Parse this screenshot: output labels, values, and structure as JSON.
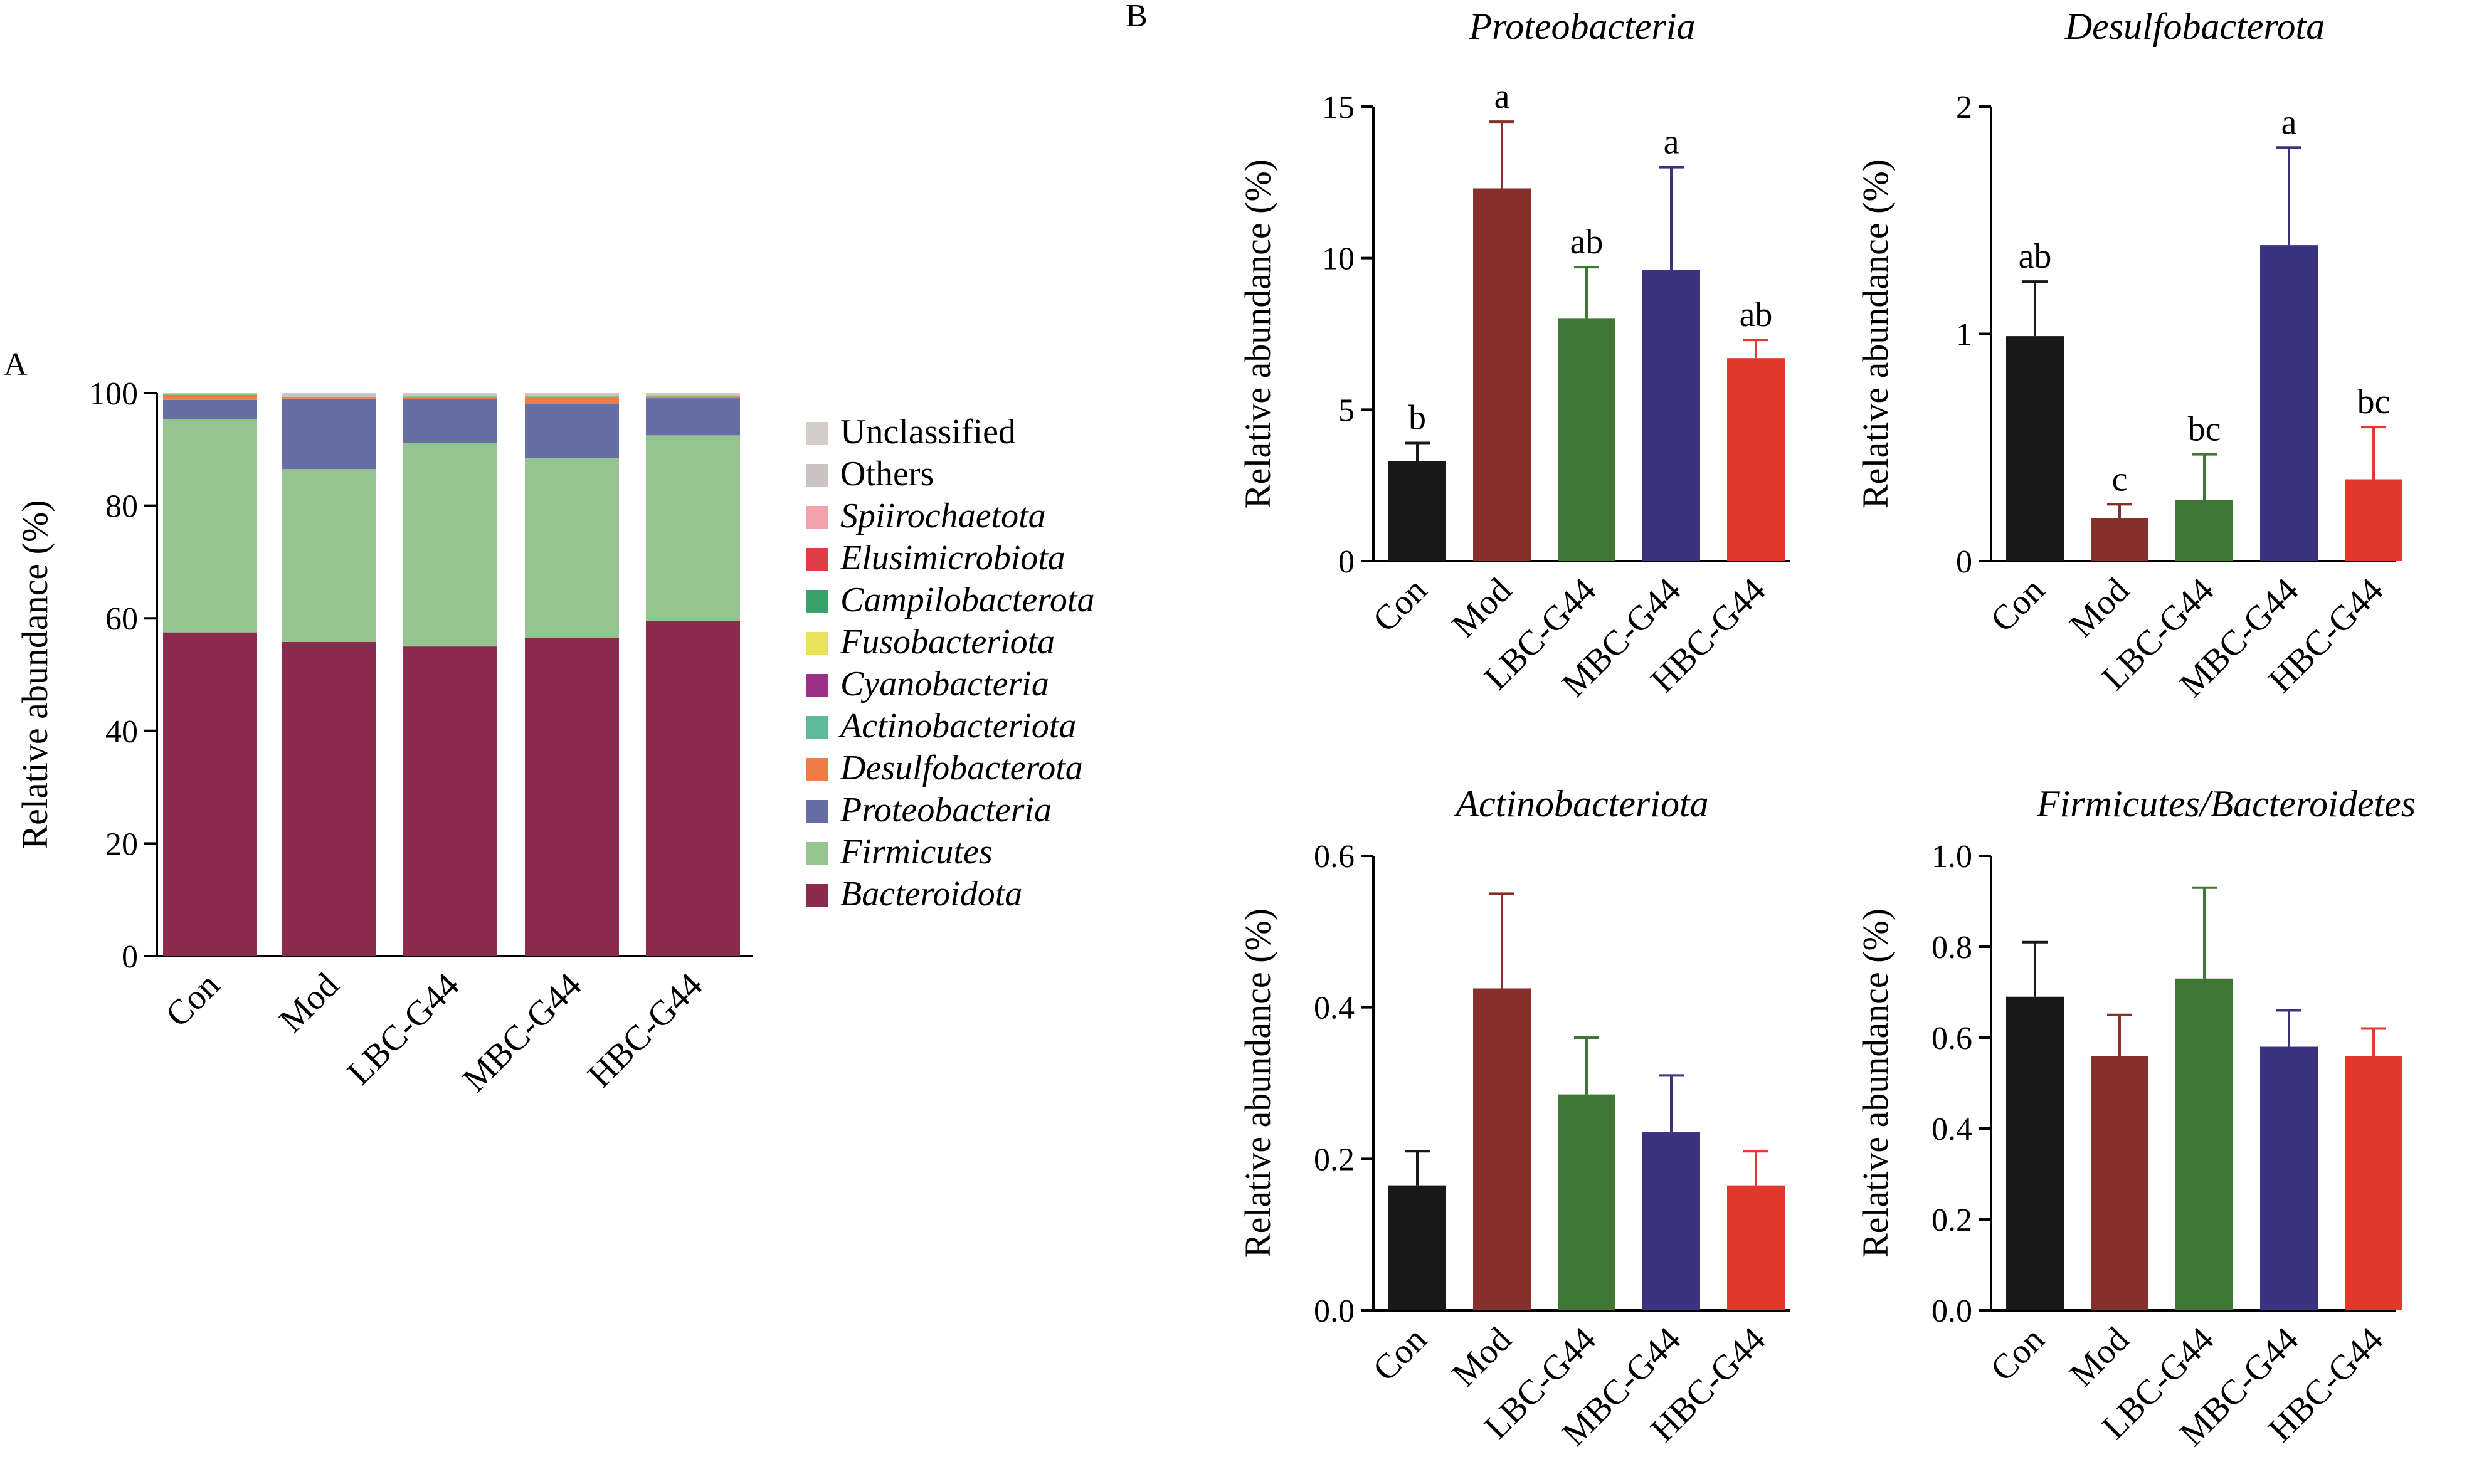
{
  "panel_labels": {
    "a": "A",
    "b": "B"
  },
  "chart_data": [
    {
      "id": "A",
      "type": "bar",
      "stacked": true,
      "title": "",
      "xlabel": "",
      "ylabel": "Relative abundance (%)",
      "ylim": [
        0,
        100
      ],
      "yticks": [
        0,
        20,
        40,
        60,
        80,
        100
      ],
      "categories": [
        "Con",
        "Mod",
        "LBC-G44",
        "MBC-G44",
        "HBC-G44"
      ],
      "legend_position": "right",
      "series": [
        {
          "name": "Bacteroidota",
          "italic": true,
          "color": "#8b2a4d",
          "values": [
            57.5,
            55.8,
            55.0,
            56.5,
            59.5
          ]
        },
        {
          "name": "Firmicutes",
          "italic": true,
          "color": "#96c48f",
          "values": [
            37.9,
            30.7,
            36.2,
            32.0,
            33.0
          ]
        },
        {
          "name": "Proteobacteria",
          "italic": true,
          "color": "#676ea4",
          "values": [
            3.4,
            12.4,
            7.8,
            9.5,
            6.6
          ]
        },
        {
          "name": "Desulfobacterota",
          "italic": true,
          "color": "#ee7d45",
          "values": [
            0.9,
            0.2,
            0.3,
            1.3,
            0.3
          ]
        },
        {
          "name": "Actinobacteriota",
          "italic": true,
          "color": "#5dbb9c",
          "values": [
            0.1,
            0.2,
            0.1,
            0.1,
            0.1
          ]
        },
        {
          "name": "Cyanobacteria",
          "italic": true,
          "color": "#9c2f86",
          "values": [
            0.0,
            0.0,
            0.0,
            0.0,
            0.0
          ]
        },
        {
          "name": "Fusobacteriota",
          "italic": true,
          "color": "#e9e35b",
          "values": [
            0.0,
            0.0,
            0.0,
            0.0,
            0.0
          ]
        },
        {
          "name": "Campilobacterota",
          "italic": true,
          "color": "#3aa36b",
          "values": [
            0.0,
            0.0,
            0.0,
            0.0,
            0.0
          ]
        },
        {
          "name": "Elusimicrobiota",
          "italic": true,
          "color": "#e03c46",
          "values": [
            0.0,
            0.0,
            0.0,
            0.0,
            0.0
          ]
        },
        {
          "name": "Spiirochaetota",
          "italic": true,
          "color": "#f2a2aa",
          "values": [
            0.0,
            0.0,
            0.0,
            0.0,
            0.0
          ]
        },
        {
          "name": "Others",
          "italic": false,
          "color": "#c9c4c1",
          "values": [
            0.2,
            0.5,
            0.4,
            0.4,
            0.3
          ]
        },
        {
          "name": "Unclassified",
          "italic": false,
          "color": "#d3cdc8",
          "values": [
            0.0,
            0.2,
            0.2,
            0.2,
            0.2
          ]
        }
      ]
    },
    {
      "id": "B1",
      "type": "bar",
      "title": "Proteobacteria",
      "xlabel": "",
      "ylabel": "Relative abundance (%)",
      "ylim": [
        0,
        15
      ],
      "yticks": [
        0,
        5,
        10,
        15
      ],
      "categories": [
        "Con",
        "Mod",
        "LBC-G44",
        "MBC-G44",
        "HBC-G44"
      ],
      "values": [
        3.3,
        12.3,
        8.0,
        9.6,
        6.7
      ],
      "errors": [
        0.6,
        2.2,
        1.7,
        3.4,
        0.6
      ],
      "significance": [
        "b",
        "a",
        "ab",
        "a",
        "ab"
      ],
      "colors": [
        "#181818",
        "#86302b",
        "#407636",
        "#3a3480",
        "#e3392d"
      ]
    },
    {
      "id": "B2",
      "type": "bar",
      "title": "Desulfobacterota",
      "xlabel": "",
      "ylabel": "Relative abundance (%)",
      "ylim": [
        0,
        2
      ],
      "yticks": [
        0,
        1,
        2
      ],
      "categories": [
        "Con",
        "Mod",
        "LBC-G44",
        "MBC-G44",
        "HBC-G44"
      ],
      "values": [
        0.99,
        0.19,
        0.27,
        1.39,
        0.36
      ],
      "errors": [
        0.24,
        0.06,
        0.2,
        0.43,
        0.23
      ],
      "significance": [
        "ab",
        "c",
        "bc",
        "a",
        "bc"
      ],
      "colors": [
        "#181818",
        "#86302b",
        "#407636",
        "#3a3480",
        "#e3392d"
      ]
    },
    {
      "id": "B3",
      "type": "bar",
      "title": "Actinobacteriota",
      "xlabel": "",
      "ylabel": "Relative abundance (%)",
      "ylim": [
        0,
        0.6
      ],
      "yticks": [
        "0.0",
        "0.2",
        "0.4",
        "0.6"
      ],
      "categories": [
        "Con",
        "Mod",
        "LBC-G44",
        "MBC-G44",
        "HBC-G44"
      ],
      "values": [
        0.165,
        0.425,
        0.285,
        0.235,
        0.165
      ],
      "errors": [
        0.045,
        0.125,
        0.075,
        0.075,
        0.045
      ],
      "significance": [
        "",
        "",
        "",
        "",
        ""
      ],
      "colors": [
        "#181818",
        "#86302b",
        "#407636",
        "#3a3480",
        "#e3392d"
      ]
    },
    {
      "id": "B4",
      "type": "bar",
      "title": "Firmicutes/Bacteroidetes",
      "xlabel": "",
      "ylabel": "Relative abundance (%)",
      "ylim": [
        0,
        1.0
      ],
      "yticks": [
        "0.0",
        "0.2",
        "0.4",
        "0.6",
        "0.8",
        "1.0"
      ],
      "categories": [
        "Con",
        "Mod",
        "LBC-G44",
        "MBC-G44",
        "HBC-G44"
      ],
      "values": [
        0.69,
        0.56,
        0.73,
        0.58,
        0.56
      ],
      "errors": [
        0.12,
        0.09,
        0.2,
        0.08,
        0.06
      ],
      "significance": [
        "",
        "",
        "",
        "",
        ""
      ],
      "colors": [
        "#181818",
        "#86302b",
        "#407636",
        "#3a3480",
        "#e3392d"
      ]
    }
  ]
}
